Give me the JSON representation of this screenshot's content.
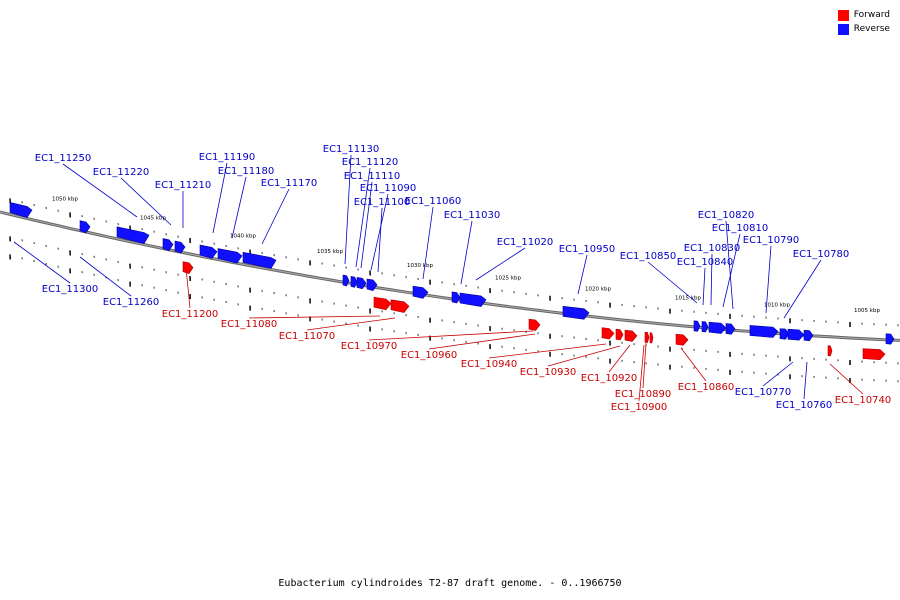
{
  "legend": {
    "forward": "Forward",
    "reverse": "Reverse"
  },
  "colors": {
    "forward": "#ff0000",
    "reverse": "#1010ff",
    "backbone": "#888888",
    "ticks": "#000000"
  },
  "caption": "Eubacterium cylindroides T2-87 draft genome. - 0..1966750",
  "scale_labels": [
    "1050 kbp",
    "1045 kbp",
    "1040 kbp",
    "1035 kbp",
    "1030 kbp",
    "1025 kbp",
    "1020 kbp",
    "1015 kbp",
    "1010 kbp",
    "1005 kbp"
  ],
  "genes_reverse": [
    "EC1_11300",
    "EC1_11260",
    "EC1_11250",
    "EC1_11220",
    "EC1_11210",
    "EC1_11190",
    "EC1_11180",
    "EC1_11170",
    "EC1_11130",
    "EC1_11120",
    "EC1_11110",
    "EC1_11090",
    "EC1_11100",
    "EC1_11060",
    "EC1_11030",
    "EC1_11020",
    "EC1_10950",
    "EC1_10850",
    "EC1_10830",
    "EC1_10840",
    "EC1_10820",
    "EC1_10810",
    "EC1_10790",
    "EC1_10780",
    "EC1_10770",
    "EC1_10760"
  ],
  "genes_forward": [
    "EC1_11200",
    "EC1_11080",
    "EC1_11070",
    "EC1_10970",
    "EC1_10960",
    "EC1_10940",
    "EC1_10930",
    "EC1_10920",
    "EC1_10890",
    "EC1_10900",
    "EC1_10860",
    "EC1_10740"
  ]
}
